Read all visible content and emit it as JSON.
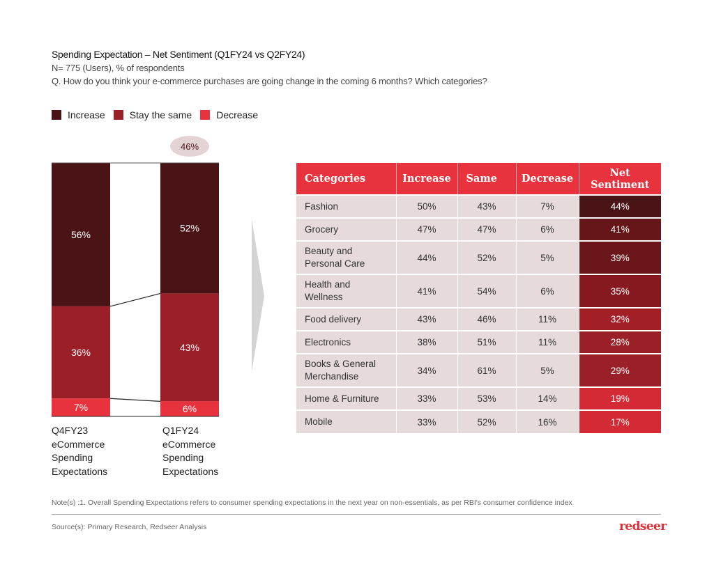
{
  "header": {
    "title": "Spending Expectation – Net Sentiment (Q1FY24 vs Q2FY24)",
    "sample": "N= 775 (Users), % of respondents",
    "question": "Q. How do you think your e-commerce purchases are going change in the coming 6 months? Which categories?"
  },
  "colors": {
    "increase": "#4a1416",
    "same": "#9b1f27",
    "decrease": "#e8333f",
    "header": "#e8333f",
    "cell": "#e6dadb",
    "arrow": "#d3d3d3"
  },
  "chart_data": [
    {
      "type": "bar",
      "stacked": true,
      "title": "",
      "legend": [
        "Increase",
        "Stay the same",
        "Decrease"
      ],
      "legend_position": "top-left",
      "categories": [
        "Q4FY23 eCommerce Spending Expectations",
        "Q1FY24 eCommerce Spending Expectations"
      ],
      "category_labels": [
        [
          "Q4FY23",
          "eCommerce",
          "Spending",
          "Expectations"
        ],
        [
          "Q1FY24",
          "eCommerce",
          "Spending",
          "Expectations"
        ]
      ],
      "series": [
        {
          "name": "Increase",
          "values": [
            56,
            52
          ]
        },
        {
          "name": "Stay the same",
          "values": [
            36,
            43
          ]
        },
        {
          "name": "Decrease",
          "values": [
            7,
            6
          ]
        }
      ],
      "annotation": "46%",
      "ylim": [
        0,
        100
      ]
    },
    {
      "type": "table",
      "columns": [
        "Categories",
        "Increase",
        "Same",
        "Decrease",
        "Net Sentiment"
      ],
      "rows": [
        {
          "category": [
            "Fashion"
          ],
          "increase": "50%",
          "same": "43%",
          "decrease": "7%",
          "net": "44%",
          "net_color": "#4a1416"
        },
        {
          "category": [
            "Grocery"
          ],
          "increase": "47%",
          "same": "47%",
          "decrease": "6%",
          "net": "41%",
          "net_color": "#661519"
        },
        {
          "category": [
            "Beauty and",
            "Personal Care"
          ],
          "increase": "44%",
          "same": "52%",
          "decrease": "5%",
          "net": "39%",
          "net_color": "#6b161b"
        },
        {
          "category": [
            "Health and",
            "Wellness"
          ],
          "increase": "41%",
          "same": "54%",
          "decrease": "6%",
          "net": "35%",
          "net_color": "#85191f"
        },
        {
          "category": [
            "Food delivery"
          ],
          "increase": "43%",
          "same": "46%",
          "decrease": "11%",
          "net": "32%",
          "net_color": "#a31f28"
        },
        {
          "category": [
            "Electronics"
          ],
          "increase": "38%",
          "same": "51%",
          "decrease": "11%",
          "net": "28%",
          "net_color": "#9b1f27"
        },
        {
          "category": [
            "Books & General",
            "Merchandise"
          ],
          "increase": "34%",
          "same": "61%",
          "decrease": "5%",
          "net": "29%",
          "net_color": "#9b1f27"
        },
        {
          "category": [
            "Home & Furniture"
          ],
          "increase": "33%",
          "same": "53%",
          "decrease": "14%",
          "net": "19%",
          "net_color": "#d42a35"
        },
        {
          "category": [
            "Mobile"
          ],
          "increase": "33%",
          "same": "52%",
          "decrease": "16%",
          "net": "17%",
          "net_color": "#d42a35"
        }
      ]
    }
  ],
  "footer": {
    "note": "Note(s) :1. Overall Spending Expectations refers to consumer spending expectations in the next year on non-essentials, as per RBI's consumer confidence index",
    "source": "Source(s): Primary Research, Redseer Analysis",
    "logo": "redseer"
  }
}
